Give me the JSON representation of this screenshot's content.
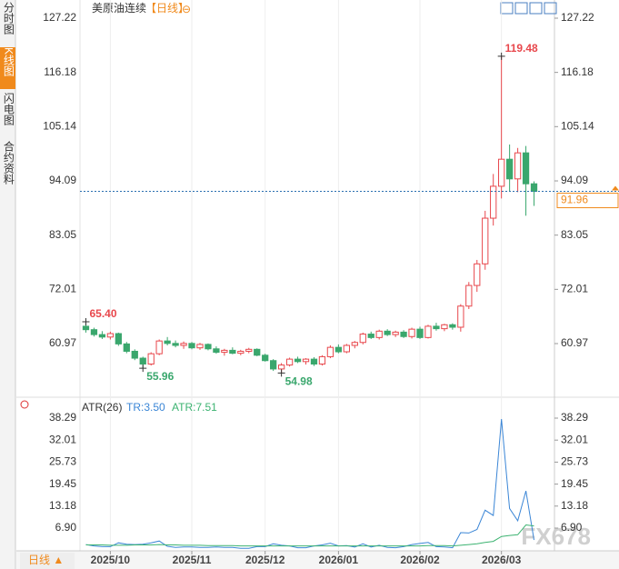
{
  "sidebar": {
    "tabs": [
      "分时图",
      "K线图",
      "闪电图",
      "合约资料"
    ],
    "active": 1,
    "period": "日线 ▲"
  },
  "header": {
    "title": "美原油连续",
    "period": "【日线】",
    "toggle": "⊖"
  },
  "watermark": "FX678",
  "chart_data": [
    {
      "type": "candlestick",
      "up_color": "#e8474c",
      "down_color": "#3aa76d",
      "ylim": [
        50.05,
        130.92
      ],
      "yticks": [
        127.22,
        116.18,
        105.14,
        94.09,
        83.05,
        72.01,
        60.97
      ],
      "xticks": [
        {
          "value": 3,
          "label": "2025/10"
        },
        {
          "value": 13,
          "label": "2025/11"
        },
        {
          "value": 22,
          "label": "2025/12"
        },
        {
          "value": 31,
          "label": "2026/01"
        },
        {
          "value": 41,
          "label": "2026/02"
        },
        {
          "value": 51,
          "label": "2026/03"
        }
      ],
      "open": [
        64.5,
        63.8,
        62.8,
        62.3,
        63.0,
        60.9,
        59.4,
        58.0,
        56.8,
        58.9,
        61.5,
        61.0,
        60.6,
        61.0,
        60.1,
        60.8,
        59.9,
        59.2,
        59.6,
        59.0,
        59.4,
        59.8,
        58.6,
        57.5,
        55.8,
        56.6,
        57.8,
        57.3,
        57.8,
        56.8,
        58.3,
        60.2,
        59.3,
        60.6,
        61.2,
        62.9,
        62.2,
        63.5,
        62.8,
        63.3,
        62.4,
        63.9,
        62.2,
        64.5,
        64.0,
        64.8,
        64.3,
        68.6,
        72.8,
        77.2,
        86.5,
        93.0,
        98.5,
        94.5,
        99.8,
        93.5
      ],
      "high": [
        65.4,
        64.2,
        63.5,
        63.4,
        63.2,
        61.3,
        59.8,
        58.3,
        59.2,
        61.8,
        62.3,
        61.6,
        61.4,
        61.3,
        61.1,
        61.0,
        60.4,
        59.9,
        60.2,
        59.7,
        60.1,
        60.0,
        58.9,
        57.8,
        57.0,
        58.1,
        58.3,
        58.0,
        58.2,
        58.6,
        60.6,
        60.8,
        60.9,
        61.5,
        63.2,
        63.4,
        63.8,
        63.9,
        63.6,
        63.7,
        64.2,
        64.4,
        64.8,
        65.2,
        65.0,
        65.1,
        69.0,
        73.5,
        78.0,
        88.0,
        95.5,
        119.48,
        101.5,
        100.8,
        101.2,
        94.0
      ],
      "low": [
        63.2,
        62.4,
        61.9,
        61.8,
        60.5,
        59.0,
        57.6,
        55.96,
        56.5,
        58.6,
        60.6,
        60.2,
        59.9,
        59.8,
        59.7,
        59.6,
        58.9,
        58.5,
        58.8,
        58.6,
        59.0,
        58.4,
        57.3,
        55.4,
        54.98,
        56.3,
        57.0,
        56.7,
        56.4,
        56.5,
        58.0,
        59.0,
        59.0,
        60.0,
        60.8,
        61.9,
        61.8,
        62.5,
        62.3,
        62.1,
        62.0,
        61.9,
        62.0,
        63.6,
        63.5,
        63.8,
        63.4,
        68.0,
        71.5,
        76.0,
        85.0,
        90.5,
        92.0,
        91.8,
        87.0,
        89.0
      ],
      "close": [
        63.8,
        62.8,
        62.3,
        63.0,
        60.9,
        59.4,
        58.0,
        56.8,
        58.9,
        61.5,
        61.0,
        60.6,
        61.0,
        60.1,
        60.8,
        59.9,
        59.2,
        59.6,
        59.0,
        59.4,
        59.8,
        58.6,
        57.5,
        55.8,
        56.6,
        57.8,
        57.3,
        57.8,
        56.8,
        58.3,
        60.2,
        59.3,
        60.6,
        61.2,
        62.9,
        62.2,
        63.5,
        62.8,
        63.3,
        62.4,
        63.9,
        62.2,
        64.5,
        64.0,
        64.8,
        64.3,
        68.6,
        72.8,
        77.2,
        86.5,
        93.0,
        98.5,
        94.5,
        99.8,
        93.5,
        91.96
      ],
      "annotations": [
        {
          "value": 65.4,
          "label": "65.40"
        },
        {
          "value": 55.96,
          "label": "55.96"
        },
        {
          "value": 54.98,
          "label": "54.98"
        },
        {
          "value": 119.48,
          "label": "119.48"
        }
      ],
      "last_price": 91.96
    },
    {
      "type": "line",
      "title": "ATR(26)",
      "tr_label": "TR:3.50",
      "atr_label": "ATR:7.51",
      "ylim": [
        0.41,
        42.18
      ],
      "yticks": [
        38.29,
        32.01,
        25.73,
        19.45,
        13.18,
        {
          "value": 6.9,
          "label": "6.90"
        }
      ],
      "series": [
        {
          "name": "TR",
          "color": "#3b86d6",
          "values": [
            2.2,
            1.8,
            1.6,
            1.6,
            2.7,
            2.3,
            2.2,
            2.3,
            2.7,
            3.2,
            1.7,
            1.4,
            1.5,
            1.5,
            1.4,
            1.4,
            1.5,
            1.4,
            1.4,
            1.1,
            1.1,
            1.6,
            1.6,
            2.4,
            2.0,
            1.8,
            1.3,
            1.3,
            1.8,
            2.1,
            2.6,
            1.8,
            1.9,
            1.5,
            2.4,
            1.5,
            2.0,
            1.4,
            1.3,
            1.6,
            2.2,
            2.5,
            2.8,
            1.6,
            1.5,
            1.3,
            5.6,
            5.5,
            6.5,
            12.0,
            10.5,
            38.0,
            12.5,
            9.0,
            17.5,
            3.5
          ]
        },
        {
          "name": "ATR",
          "color": "#3cb371",
          "values": [
            2.1,
            2.1,
            2.1,
            2.0,
            2.0,
            2.0,
            2.1,
            2.1,
            2.1,
            2.2,
            2.1,
            2.1,
            2.0,
            2.0,
            2.0,
            1.9,
            1.9,
            1.9,
            1.9,
            1.8,
            1.8,
            1.8,
            1.8,
            1.8,
            1.8,
            1.8,
            1.8,
            1.8,
            1.8,
            1.8,
            1.8,
            1.8,
            1.8,
            1.8,
            1.8,
            1.8,
            1.8,
            1.8,
            1.8,
            1.8,
            1.8,
            1.8,
            1.9,
            1.9,
            1.9,
            1.8,
            2.0,
            2.2,
            2.4,
            2.8,
            3.1,
            4.5,
            4.8,
            5.0,
            7.8,
            7.51
          ]
        }
      ]
    }
  ]
}
